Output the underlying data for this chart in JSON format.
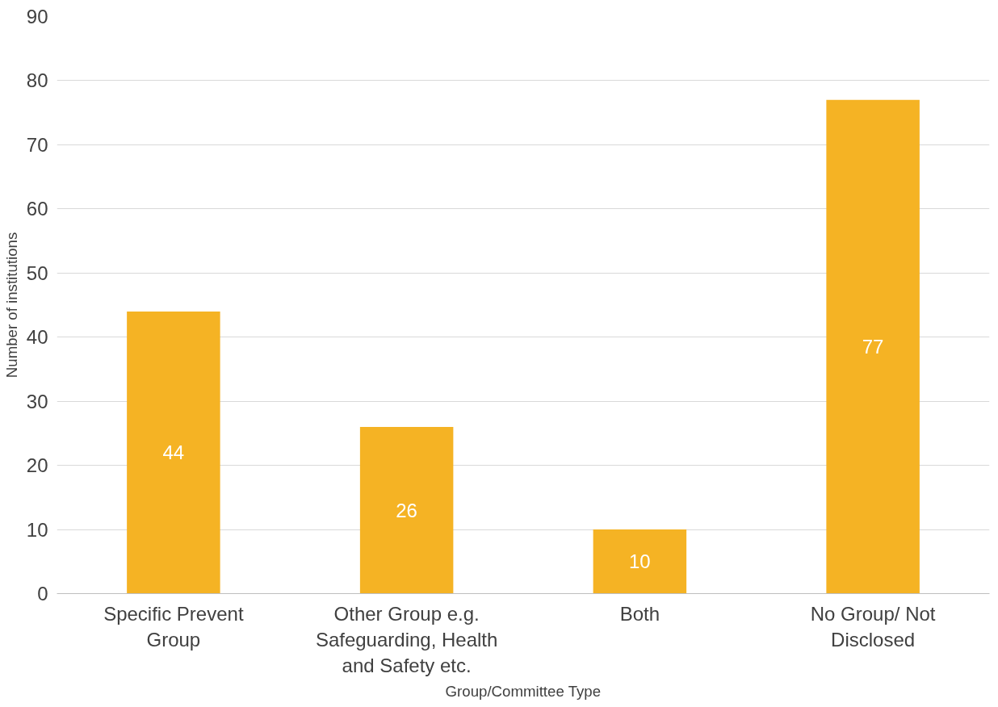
{
  "chart_data": {
    "type": "bar",
    "xlabel": "Group/Committee Type",
    "ylabel": "Number of institutions",
    "categories": [
      "Specific Prevent Group",
      "Other Group e.g. Safeguarding, Health and Safety etc.",
      "Both",
      "No Group/ Not Disclosed"
    ],
    "values": [
      44,
      26,
      10,
      77
    ],
    "color": "#f5b324",
    "data_labels": true,
    "ylim": [
      0,
      90
    ],
    "yticks": [
      0,
      10,
      20,
      30,
      40,
      50,
      60,
      70,
      80,
      90
    ],
    "grid": "y"
  }
}
